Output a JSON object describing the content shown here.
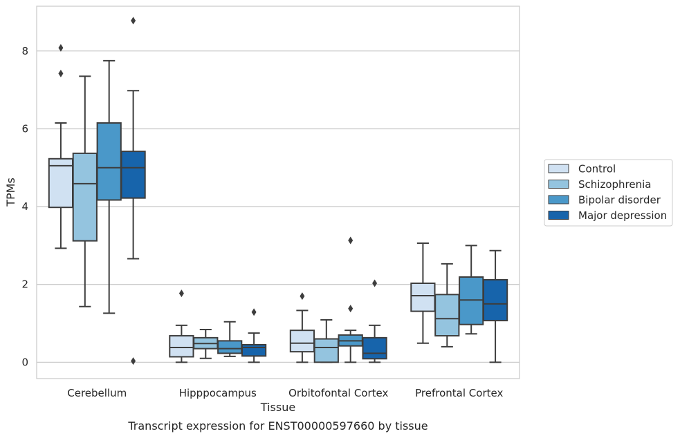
{
  "chart_data": {
    "type": "boxplot",
    "title": "",
    "caption": "Transcript expression for ENST00000597660 by tissue",
    "xlabel": "Tissue",
    "ylabel": "TPMs",
    "ylim": [
      -0.42,
      9.15
    ],
    "yticks": [
      0,
      2,
      4,
      6,
      8
    ],
    "grid": "horizontal",
    "legend_position": "right",
    "categories": [
      "Cerebellum",
      "Hipppocampus",
      "Orbitofontal Cortex",
      "Prefrontal Cortex"
    ],
    "series": [
      {
        "name": "Control",
        "color": "#d0e1f2",
        "boxes": [
          {
            "whislo": 2.93,
            "q1": 3.98,
            "med": 5.05,
            "q3": 5.23,
            "whishi": 6.15,
            "fliers": [
              7.42,
              8.08
            ]
          },
          {
            "whislo": 0.0,
            "q1": 0.14,
            "med": 0.38,
            "q3": 0.68,
            "whishi": 0.95,
            "fliers": [
              1.77
            ]
          },
          {
            "whislo": 0.0,
            "q1": 0.27,
            "med": 0.49,
            "q3": 0.82,
            "whishi": 1.33,
            "fliers": [
              1.7
            ]
          },
          {
            "whislo": 0.49,
            "q1": 1.31,
            "med": 1.71,
            "q3": 2.03,
            "whishi": 3.06,
            "fliers": []
          }
        ]
      },
      {
        "name": "Schizophrenia",
        "color": "#94c4df",
        "boxes": [
          {
            "whislo": 1.43,
            "q1": 3.12,
            "med": 4.59,
            "q3": 5.37,
            "whishi": 7.35,
            "fliers": []
          },
          {
            "whislo": 0.1,
            "q1": 0.35,
            "med": 0.48,
            "q3": 0.63,
            "whishi": 0.84,
            "fliers": []
          },
          {
            "whislo": 0.0,
            "q1": 0.0,
            "med": 0.38,
            "q3": 0.6,
            "whishi": 1.09,
            "fliers": []
          },
          {
            "whislo": 0.4,
            "q1": 0.68,
            "med": 1.12,
            "q3": 1.74,
            "whishi": 2.53,
            "fliers": []
          }
        ]
      },
      {
        "name": "Bipolar disorder",
        "color": "#4a98c9",
        "boxes": [
          {
            "whislo": 1.26,
            "q1": 4.17,
            "med": 5.0,
            "q3": 6.15,
            "whishi": 7.75,
            "fliers": []
          },
          {
            "whislo": 0.15,
            "q1": 0.23,
            "med": 0.35,
            "q3": 0.55,
            "whishi": 1.04,
            "fliers": []
          },
          {
            "whislo": 0.0,
            "q1": 0.42,
            "med": 0.55,
            "q3": 0.7,
            "whishi": 0.82,
            "fliers": [
              1.38,
              3.13
            ]
          },
          {
            "whislo": 0.73,
            "q1": 0.97,
            "med": 1.6,
            "q3": 2.19,
            "whishi": 3.0,
            "fliers": []
          }
        ]
      },
      {
        "name": "Major depression",
        "color": "#1764ab",
        "boxes": [
          {
            "whislo": 2.66,
            "q1": 4.22,
            "med": 5.0,
            "q3": 5.42,
            "whishi": 6.98,
            "fliers": [
              0.03,
              8.78
            ]
          },
          {
            "whislo": 0.0,
            "q1": 0.16,
            "med": 0.38,
            "q3": 0.45,
            "whishi": 0.75,
            "fliers": [
              1.29
            ]
          },
          {
            "whislo": 0.0,
            "q1": 0.09,
            "med": 0.23,
            "q3": 0.63,
            "whishi": 0.95,
            "fliers": [
              2.03
            ]
          },
          {
            "whislo": 0.0,
            "q1": 1.07,
            "med": 1.5,
            "q3": 2.12,
            "whishi": 2.87,
            "fliers": []
          }
        ]
      }
    ]
  }
}
